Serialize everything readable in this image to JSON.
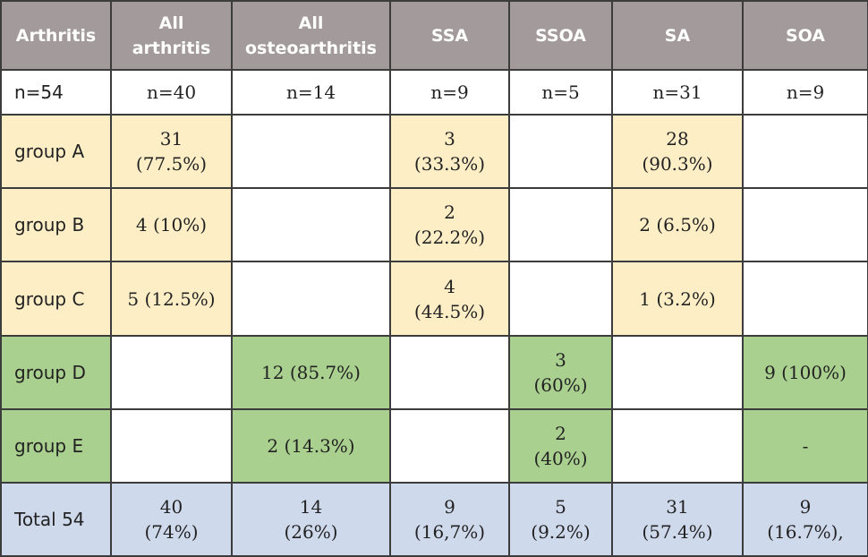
{
  "colors": {
    "header": "#a39a9b",
    "group_abc": "#fdeec6",
    "group_de": "#a9d08e",
    "total": "#cfd9ec"
  },
  "table": {
    "headers": [
      "Arthritis",
      "All\narthritis",
      "All\nosteoarthritis",
      "SSA",
      "SSOA",
      "SA",
      "SOA"
    ],
    "rows": [
      {
        "name": "n-row",
        "cells": [
          [
            "n=54",
            "w"
          ],
          [
            "n=40",
            "w"
          ],
          [
            "n=14",
            "w"
          ],
          [
            "n=9",
            "w"
          ],
          [
            "n=5",
            "w"
          ],
          [
            "n=31",
            "w"
          ],
          [
            "n=9",
            "w"
          ]
        ]
      },
      {
        "name": "group-a-row",
        "cells": [
          [
            "group A",
            "y"
          ],
          [
            "31\n(77.5%)",
            "y"
          ],
          [
            "",
            "w"
          ],
          [
            "3\n(33.3%)",
            "y"
          ],
          [
            "",
            "w"
          ],
          [
            "28\n(90.3%)",
            "y"
          ],
          [
            "",
            "w"
          ]
        ]
      },
      {
        "name": "group-b-row",
        "cells": [
          [
            "group B",
            "y"
          ],
          [
            "4 (10%)",
            "y"
          ],
          [
            "",
            "w"
          ],
          [
            "2\n(22.2%)",
            "y"
          ],
          [
            "",
            "w"
          ],
          [
            "2 (6.5%)",
            "y"
          ],
          [
            "",
            "w"
          ]
        ]
      },
      {
        "name": "group-c-row",
        "cells": [
          [
            "group C",
            "y"
          ],
          [
            "5 (12.5%)",
            "y"
          ],
          [
            "",
            "w"
          ],
          [
            "4\n(44.5%)",
            "y"
          ],
          [
            "",
            "w"
          ],
          [
            "1 (3.2%)",
            "y"
          ],
          [
            "",
            "w"
          ]
        ]
      },
      {
        "name": "group-d-row",
        "cells": [
          [
            "group D",
            "g"
          ],
          [
            "",
            "w"
          ],
          [
            "12 (85.7%)",
            "g"
          ],
          [
            "",
            "w"
          ],
          [
            "3\n(60%)",
            "g"
          ],
          [
            "",
            "w"
          ],
          [
            "9 (100%)",
            "g"
          ]
        ]
      },
      {
        "name": "group-e-row",
        "cells": [
          [
            "group E",
            "g"
          ],
          [
            "",
            "w"
          ],
          [
            "2 (14.3%)",
            "g"
          ],
          [
            "",
            "w"
          ],
          [
            "2\n(40%)",
            "g"
          ],
          [
            "",
            "w"
          ],
          [
            "-",
            "g"
          ]
        ]
      },
      {
        "name": "total-row",
        "cells": [
          [
            "Total 54",
            "b"
          ],
          [
            "40\n(74%)",
            "b"
          ],
          [
            "14\n(26%)",
            "b"
          ],
          [
            "9\n(16,7%)",
            "b"
          ],
          [
            "5\n(9.2%)",
            "b"
          ],
          [
            "31\n(57.4%)",
            "b"
          ],
          [
            "9\n(16.7%),",
            "b"
          ]
        ]
      }
    ]
  }
}
